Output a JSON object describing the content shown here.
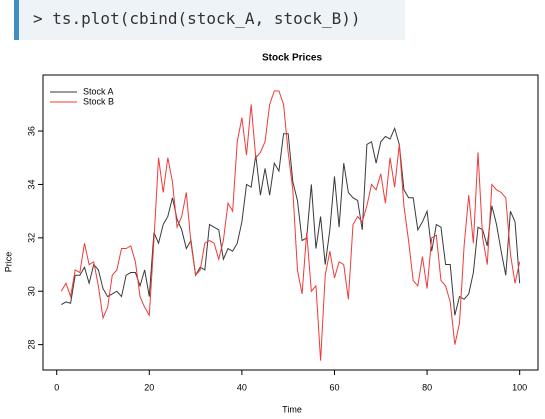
{
  "code": "> ts.plot(cbind(stock_A, stock_B))",
  "chart_data": {
    "type": "line",
    "title": "Stock Prices",
    "xlabel": "Time",
    "ylabel": "Price",
    "x": [
      1,
      2,
      3,
      4,
      5,
      6,
      7,
      8,
      9,
      10,
      11,
      12,
      13,
      14,
      15,
      16,
      17,
      18,
      19,
      20,
      21,
      22,
      23,
      24,
      25,
      26,
      27,
      28,
      29,
      30,
      31,
      32,
      33,
      34,
      35,
      36,
      37,
      38,
      39,
      40,
      41,
      42,
      43,
      44,
      45,
      46,
      47,
      48,
      49,
      50,
      51,
      52,
      53,
      54,
      55,
      56,
      57,
      58,
      59,
      60,
      61,
      62,
      63,
      64,
      65,
      66,
      67,
      68,
      69,
      70,
      71,
      72,
      73,
      74,
      75,
      76,
      77,
      78,
      79,
      80,
      81,
      82,
      83,
      84,
      85,
      86,
      87,
      88,
      89,
      90,
      91,
      92,
      93,
      94,
      95,
      96,
      97,
      98,
      99,
      100
    ],
    "series": [
      {
        "name": "Stock A",
        "color": "#3a3a3a",
        "values": [
          29.5,
          29.6,
          29.55,
          30.6,
          30.6,
          30.9,
          30.3,
          31.0,
          30.8,
          30.1,
          29.8,
          29.9,
          30.0,
          29.8,
          30.6,
          30.7,
          30.7,
          30.2,
          30.8,
          29.8,
          32.2,
          31.8,
          32.5,
          32.8,
          33.5,
          32.7,
          32.3,
          31.6,
          31.9,
          30.6,
          30.9,
          30.8,
          32.5,
          32.4,
          32.3,
          31.2,
          31.6,
          31.5,
          31.8,
          32.6,
          34.0,
          33.9,
          35.1,
          33.6,
          34.6,
          33.6,
          34.8,
          34.5,
          35.9,
          35.9,
          34.1,
          33.4,
          31.9,
          32.0,
          34.0,
          31.6,
          32.8,
          31.0,
          32.3,
          34.3,
          32.4,
          34.8,
          33.7,
          33.5,
          33.4,
          32.3,
          35.5,
          35.6,
          34.8,
          35.6,
          35.8,
          35.7,
          36.1,
          35.5,
          33.8,
          33.5,
          33.5,
          32.3,
          32.6,
          33.0,
          31.5,
          32.5,
          32.4,
          31.0,
          31.0,
          29.1,
          29.8,
          29.7,
          29.9,
          30.7,
          32.4,
          32.3,
          31.7,
          33.2,
          32.5,
          31.5,
          30.6,
          33.0,
          32.6,
          30.3
        ]
      },
      {
        "name": "Stock B",
        "color": "#f03a3a",
        "values": [
          30.0,
          30.3,
          29.8,
          30.8,
          30.7,
          31.8,
          31.0,
          31.1,
          30.2,
          29.0,
          29.4,
          30.6,
          30.8,
          31.6,
          31.6,
          31.7,
          31.1,
          29.8,
          29.4,
          29.1,
          31.9,
          35.0,
          33.7,
          35.0,
          34.1,
          32.4,
          32.8,
          33.7,
          31.8,
          30.6,
          30.8,
          31.8,
          31.9,
          31.8,
          31.2,
          31.9,
          33.3,
          33.0,
          35.6,
          36.5,
          35.1,
          37.0,
          35.0,
          35.2,
          35.6,
          37.0,
          37.5,
          37.5,
          37.0,
          35.2,
          33.8,
          30.8,
          29.9,
          32.2,
          30.0,
          30.2,
          27.4,
          30.6,
          31.5,
          30.5,
          31.1,
          31.0,
          29.7,
          32.5,
          32.8,
          32.6,
          33.2,
          34.0,
          33.8,
          34.4,
          33.3,
          35.0,
          33.9,
          35.5,
          33.2,
          31.9,
          30.4,
          30.2,
          31.3,
          30.1,
          32.0,
          32.1,
          30.4,
          30.2,
          29.6,
          28.0,
          28.8,
          31.7,
          33.6,
          31.8,
          35.2,
          32.0,
          31.0,
          34.0,
          33.8,
          33.7,
          33.5,
          31.4,
          30.3,
          31.1
        ]
      }
    ],
    "xlim": [
      -2.96,
      103.96
    ],
    "xticks": [
      0,
      20,
      40,
      60,
      80,
      100
    ],
    "ylim": [
      27.05,
      38.1
    ],
    "yticks": [
      28,
      30,
      32,
      34,
      36
    ],
    "legend": "top-left"
  }
}
